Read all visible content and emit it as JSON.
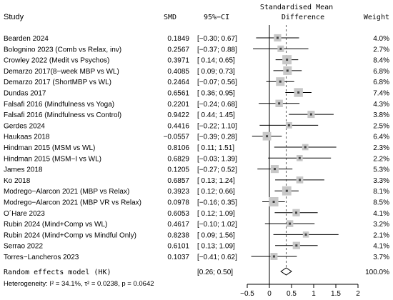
{
  "chart_data": {
    "type": "forest",
    "headers": {
      "study": "Study",
      "smd": "SMD",
      "ci": "95%−CI",
      "plot_title_line1": "Standardised Mean",
      "plot_title_line2": "Difference",
      "weight": "Weight"
    },
    "studies": [
      {
        "name": "Bearden 2024",
        "smd": "0.1849",
        "ci": "[−0.30; 0.67]",
        "weight": "4.0%",
        "est": 0.1849,
        "lo": -0.3,
        "hi": 0.67,
        "w": 4.0
      },
      {
        "name": "Bolognino 2023 (Comb vs Relax, inv)",
        "smd": "0.2567",
        "ci": "[−0.37; 0.88]",
        "weight": "2.7%",
        "est": 0.2567,
        "lo": -0.37,
        "hi": 0.88,
        "w": 2.7
      },
      {
        "name": "Crowley 2022 (Medit vs Psychos)",
        "smd": "0.3971",
        "ci": "[ 0.14; 0.65]",
        "weight": "8.4%",
        "est": 0.3971,
        "lo": 0.14,
        "hi": 0.65,
        "w": 8.4
      },
      {
        "name": "Demarzo 2017(8−week MBP vs WL)",
        "smd": "0.4085",
        "ci": "[ 0.09; 0.73]",
        "weight": "6.8%",
        "est": 0.4085,
        "lo": 0.09,
        "hi": 0.73,
        "w": 6.8
      },
      {
        "name": "Demarzo 2017 (ShortMBP vs WL)",
        "smd": "0.2464",
        "ci": "[−0.07; 0.56]",
        "weight": "6.8%",
        "est": 0.2464,
        "lo": -0.07,
        "hi": 0.56,
        "w": 6.8
      },
      {
        "name": "Dundas 2017",
        "smd": "0.6561",
        "ci": "[ 0.36; 0.95]",
        "weight": "7.4%",
        "est": 0.6561,
        "lo": 0.36,
        "hi": 0.95,
        "w": 7.4
      },
      {
        "name": "Falsafi 2016 (Mindfulness vs Yoga)",
        "smd": "0.2201",
        "ci": "[−0.24; 0.68]",
        "weight": "4.3%",
        "est": 0.2201,
        "lo": -0.24,
        "hi": 0.68,
        "w": 4.3
      },
      {
        "name": "Falsafi 2016 (Mindfulness vs Control)",
        "smd": "0.9422",
        "ci": "[ 0.44; 1.45]",
        "weight": "3.8%",
        "est": 0.9422,
        "lo": 0.44,
        "hi": 1.45,
        "w": 3.8
      },
      {
        "name": "Gerdes 2024",
        "smd": "0.4416",
        "ci": "[−0.22; 1.10]",
        "weight": "2.5%",
        "est": 0.4416,
        "lo": -0.22,
        "hi": 1.1,
        "w": 2.5
      },
      {
        "name": "Haukaas 2018",
        "smd": "−0.0557",
        "ci": "[−0.39; 0.28]",
        "weight": "6.4%",
        "est": -0.0557,
        "lo": -0.39,
        "hi": 0.28,
        "w": 6.4
      },
      {
        "name": "Hindman 2015 (MSM vs WL)",
        "smd": "0.8106",
        "ci": "[ 0.11; 1.51]",
        "weight": "2.3%",
        "est": 0.8106,
        "lo": 0.11,
        "hi": 1.51,
        "w": 2.3
      },
      {
        "name": "Hindman 2015 (MSM−I vs WL)",
        "smd": "0.6829",
        "ci": "[−0.03; 1.39]",
        "weight": "2.2%",
        "est": 0.6829,
        "lo": -0.03,
        "hi": 1.39,
        "w": 2.2
      },
      {
        "name": "James 2018",
        "smd": "0.1205",
        "ci": "[−0.27; 0.52]",
        "weight": "5.3%",
        "est": 0.1205,
        "lo": -0.27,
        "hi": 0.52,
        "w": 5.3
      },
      {
        "name": "Ko 2018",
        "smd": "0.6857",
        "ci": "[ 0.13; 1.24]",
        "weight": "3.3%",
        "est": 0.6857,
        "lo": 0.13,
        "hi": 1.24,
        "w": 3.3
      },
      {
        "name": "Modrego−Alarcon 2021 (MBP vs Relax)",
        "smd": "0.3923",
        "ci": "[ 0.12; 0.66]",
        "weight": "8.1%",
        "est": 0.3923,
        "lo": 0.12,
        "hi": 0.66,
        "w": 8.1
      },
      {
        "name": "Modrego−Alarcon 2021 (MBP VR vs Relax)",
        "smd": "0.0978",
        "ci": "[−0.16; 0.35]",
        "weight": "8.5%",
        "est": 0.0978,
        "lo": -0.16,
        "hi": 0.35,
        "w": 8.5
      },
      {
        "name": "O´Hare 2023",
        "smd": "0.6053",
        "ci": "[ 0.12; 1.09]",
        "weight": "4.1%",
        "est": 0.6053,
        "lo": 0.12,
        "hi": 1.09,
        "w": 4.1
      },
      {
        "name": "Rubin 2024 (Mind+Comp vs WL)",
        "smd": "0.4617",
        "ci": "[−0.10; 1.02]",
        "weight": "3.2%",
        "est": 0.4617,
        "lo": -0.1,
        "hi": 1.02,
        "w": 3.2
      },
      {
        "name": "Rubin 2024 (Mind+Comp vs Mindful Only)",
        "smd": "0.8238",
        "ci": "[ 0.09; 1.56]",
        "weight": "2.1%",
        "est": 0.8238,
        "lo": 0.09,
        "hi": 1.56,
        "w": 2.1
      },
      {
        "name": "Serrao 2022",
        "smd": "0.6101",
        "ci": "[ 0.13; 1.09]",
        "weight": "4.1%",
        "est": 0.6101,
        "lo": 0.13,
        "hi": 1.09,
        "w": 4.1
      },
      {
        "name": "Torres−Lancheros 2023",
        "smd": "0.1037",
        "ci": "[−0.41; 0.62]",
        "weight": "3.7%",
        "est": 0.1037,
        "lo": -0.41,
        "hi": 0.62,
        "w": 3.7
      }
    ],
    "pooled": {
      "label": "Random effects model (HK)",
      "ci": "[0.26; 0.50]",
      "weight": "100.0%",
      "est": 0.38,
      "lo": 0.26,
      "hi": 0.5
    },
    "heterogeneity": "Heterogeneity: I² = 34.1%, τ² = 0.0238, p = 0.0642",
    "x_axis": {
      "min": -0.5,
      "max": 2,
      "ticks": [
        -0.5,
        0,
        0.5,
        1,
        1.5,
        2
      ],
      "tick_labels": [
        "−0.5",
        "0",
        "0.5",
        "1",
        "1.5",
        "2"
      ]
    },
    "null_line": 0,
    "pooled_line": 0.38,
    "colors": {
      "square": "#c8c8c8",
      "line": "#000000",
      "diamond": "#ffffff",
      "pooled_line": "#555555"
    }
  }
}
